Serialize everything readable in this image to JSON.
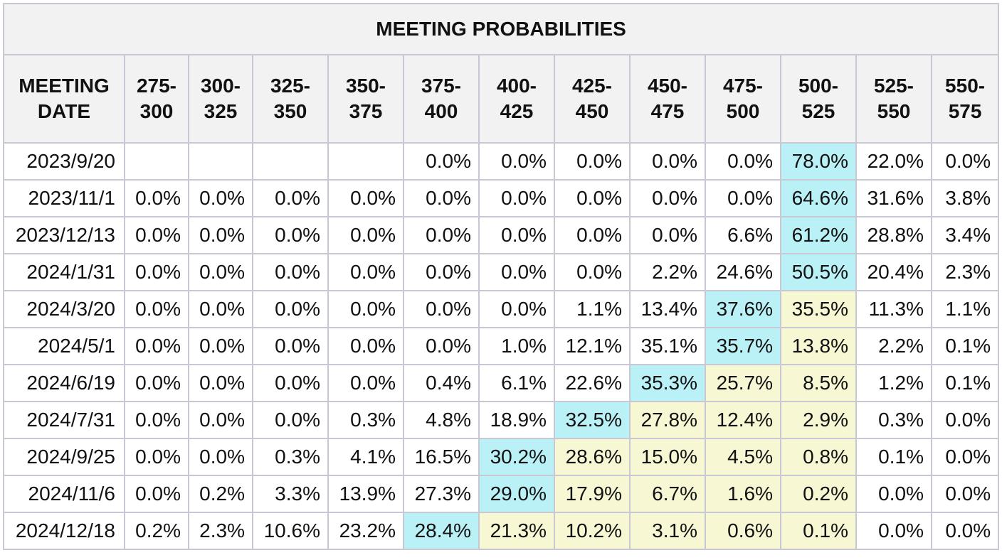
{
  "title": "MEETING PROBABILITIES",
  "header_first": [
    "MEETING",
    "DATE"
  ],
  "ranges": [
    [
      "275-",
      "300"
    ],
    [
      "300-",
      "325"
    ],
    [
      "325-",
      "350"
    ],
    [
      "350-",
      "375"
    ],
    [
      "375-",
      "400"
    ],
    [
      "400-",
      "425"
    ],
    [
      "425-",
      "450"
    ],
    [
      "450-",
      "475"
    ],
    [
      "475-",
      "500"
    ],
    [
      "500-",
      "525"
    ],
    [
      "525-",
      "550"
    ],
    [
      "550-",
      "575"
    ]
  ],
  "colors": {
    "highest": "#b9f1f7",
    "above_current": "#f7f7d4",
    "header_bg": "#f2f2f2"
  },
  "rows": [
    {
      "date": "2023/9/20",
      "values": [
        "",
        "",
        "",
        "",
        "0.0%",
        "0.0%",
        "0.0%",
        "0.0%",
        "0.0%",
        "78.0%",
        "22.0%",
        "0.0%"
      ],
      "hi": 9,
      "lo": []
    },
    {
      "date": "2023/11/1",
      "values": [
        "0.0%",
        "0.0%",
        "0.0%",
        "0.0%",
        "0.0%",
        "0.0%",
        "0.0%",
        "0.0%",
        "0.0%",
        "64.6%",
        "31.6%",
        "3.8%"
      ],
      "hi": 9,
      "lo": []
    },
    {
      "date": "2023/12/13",
      "values": [
        "0.0%",
        "0.0%",
        "0.0%",
        "0.0%",
        "0.0%",
        "0.0%",
        "0.0%",
        "0.0%",
        "6.6%",
        "61.2%",
        "28.8%",
        "3.4%"
      ],
      "hi": 9,
      "lo": []
    },
    {
      "date": "2024/1/31",
      "values": [
        "0.0%",
        "0.0%",
        "0.0%",
        "0.0%",
        "0.0%",
        "0.0%",
        "0.0%",
        "2.2%",
        "24.6%",
        "50.5%",
        "20.4%",
        "2.3%"
      ],
      "hi": 9,
      "lo": []
    },
    {
      "date": "2024/3/20",
      "values": [
        "0.0%",
        "0.0%",
        "0.0%",
        "0.0%",
        "0.0%",
        "0.0%",
        "1.1%",
        "13.4%",
        "37.6%",
        "35.5%",
        "11.3%",
        "1.1%"
      ],
      "hi": 8,
      "lo": [
        9
      ]
    },
    {
      "date": "2024/5/1",
      "values": [
        "0.0%",
        "0.0%",
        "0.0%",
        "0.0%",
        "0.0%",
        "1.0%",
        "12.1%",
        "35.1%",
        "35.7%",
        "13.8%",
        "2.2%",
        "0.1%"
      ],
      "hi": 8,
      "lo": [
        9
      ]
    },
    {
      "date": "2024/6/19",
      "values": [
        "0.0%",
        "0.0%",
        "0.0%",
        "0.0%",
        "0.4%",
        "6.1%",
        "22.6%",
        "35.3%",
        "25.7%",
        "8.5%",
        "1.2%",
        "0.1%"
      ],
      "hi": 7,
      "lo": [
        8,
        9
      ]
    },
    {
      "date": "2024/7/31",
      "values": [
        "0.0%",
        "0.0%",
        "0.0%",
        "0.3%",
        "4.8%",
        "18.9%",
        "32.5%",
        "27.8%",
        "12.4%",
        "2.9%",
        "0.3%",
        "0.0%"
      ],
      "hi": 6,
      "lo": [
        7,
        8,
        9
      ]
    },
    {
      "date": "2024/9/25",
      "values": [
        "0.0%",
        "0.0%",
        "0.3%",
        "4.1%",
        "16.5%",
        "30.2%",
        "28.6%",
        "15.0%",
        "4.5%",
        "0.8%",
        "0.1%",
        "0.0%"
      ],
      "hi": 5,
      "lo": [
        6,
        7,
        8,
        9
      ]
    },
    {
      "date": "2024/11/6",
      "values": [
        "0.0%",
        "0.2%",
        "3.3%",
        "13.9%",
        "27.3%",
        "29.0%",
        "17.9%",
        "6.7%",
        "1.6%",
        "0.2%",
        "0.0%",
        "0.0%"
      ],
      "hi": 5,
      "lo": [
        6,
        7,
        8,
        9
      ]
    },
    {
      "date": "2024/12/18",
      "values": [
        "0.2%",
        "2.3%",
        "10.6%",
        "23.2%",
        "28.4%",
        "21.3%",
        "10.2%",
        "3.1%",
        "0.6%",
        "0.1%",
        "0.0%",
        "0.0%"
      ],
      "hi": 4,
      "lo": [
        5,
        6,
        7,
        8,
        9
      ]
    }
  ]
}
